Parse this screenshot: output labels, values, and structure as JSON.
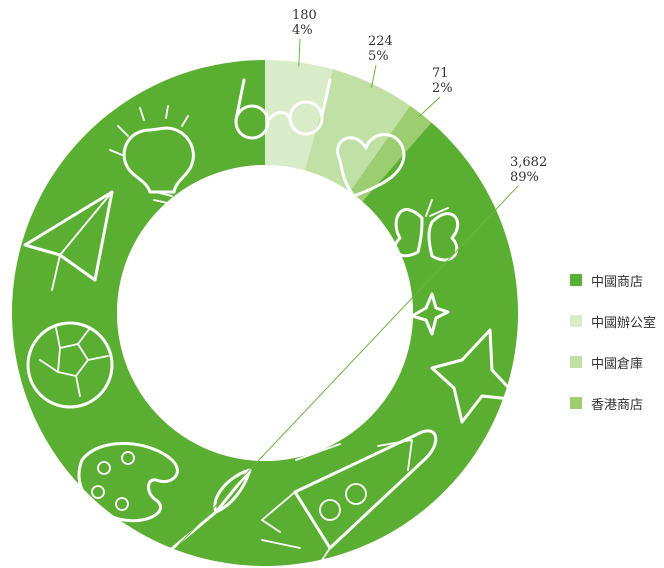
{
  "chart_data": {
    "type": "pie",
    "donut": true,
    "categories": [
      "中國商店",
      "中國辦公室",
      "中國倉庫",
      "香港商店"
    ],
    "values": [
      3682,
      180,
      224,
      71
    ],
    "percent_labels": [
      "89%",
      "4%",
      "5%",
      "2%"
    ],
    "value_labels": [
      "3,682",
      "180",
      "224",
      "71"
    ],
    "colors": [
      "#5aaf32",
      "#d9ecc9",
      "#c1e0a5",
      "#9ccd70"
    ],
    "legend_position": "right"
  },
  "legend": {
    "items": [
      {
        "label": "中國商店",
        "color": "#5aaf32"
      },
      {
        "label": "中國辦公室",
        "color": "#d9ecc9"
      },
      {
        "label": "中國倉庫",
        "color": "#c1e0a5"
      },
      {
        "label": "香港商店",
        "color": "#9ccd70"
      }
    ]
  }
}
